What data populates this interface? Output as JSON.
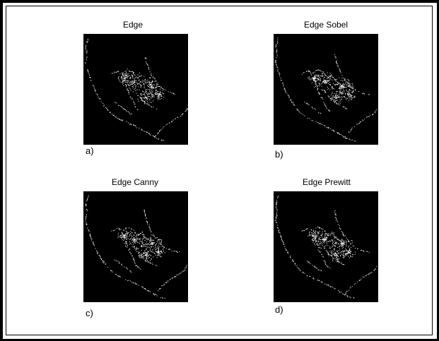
{
  "panels": [
    {
      "title": "Edge",
      "label": "a)"
    },
    {
      "title": "Edge Sobel",
      "label": "b)"
    },
    {
      "title": "Edge Canny",
      "label": "c)"
    },
    {
      "title": "Edge Prewitt",
      "label": "d)"
    }
  ],
  "colors": {
    "image_background": "#000000",
    "edge_pixels": "#ffffff"
  }
}
